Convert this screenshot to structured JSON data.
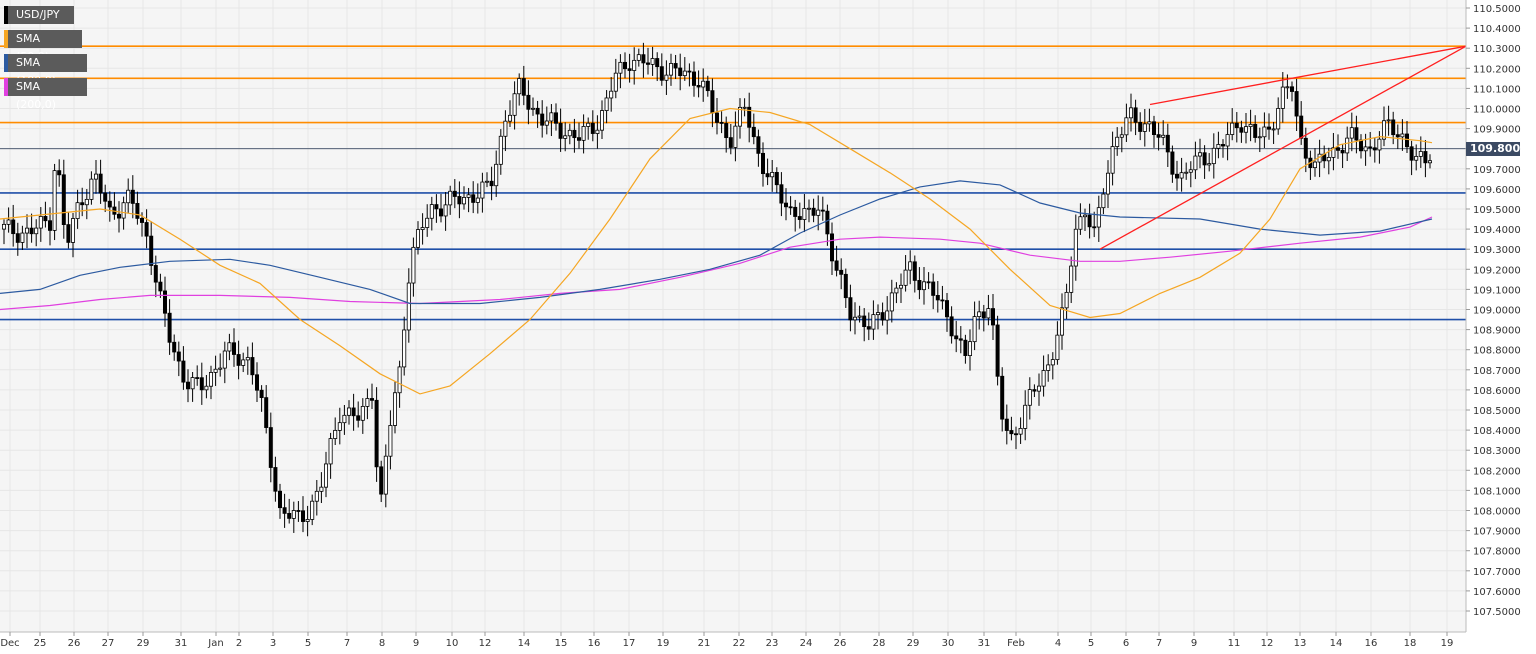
{
  "chart_data": {
    "type": "candlestick",
    "symbol": "USD/JPY",
    "legend": [
      {
        "label": "USD/JPY",
        "color": "#000000"
      },
      {
        "label": "SMA (50,0)",
        "color": "#f5a623"
      },
      {
        "label": "SMA (100,0)",
        "color": "#2c5aa0"
      },
      {
        "label": "SMA (200,0)",
        "color": "#e040e0"
      }
    ],
    "current_price": "109.8000",
    "ylim": [
      107.4,
      110.6
    ],
    "y_ticks": [
      "110.5000",
      "110.4000",
      "110.3000",
      "110.2000",
      "110.1000",
      "110.0000",
      "109.9000",
      "109.8000",
      "109.7000",
      "109.6000",
      "109.5000",
      "109.4000",
      "109.3000",
      "109.2000",
      "109.1000",
      "109.0000",
      "108.9000",
      "108.8000",
      "108.7000",
      "108.6000",
      "108.5000",
      "108.4000",
      "108.3000",
      "108.2000",
      "108.1000",
      "108.0000",
      "107.9000",
      "107.8000",
      "107.7000",
      "107.6000",
      "107.5000"
    ],
    "x_ticks": [
      "Dec",
      "25",
      "26",
      "27",
      "29",
      "31",
      "Jan",
      "2",
      "3",
      "5",
      "7",
      "8",
      "9",
      "10",
      "12",
      "14",
      "15",
      "16",
      "17",
      "19",
      "21",
      "22",
      "23",
      "24",
      "26",
      "28",
      "29",
      "30",
      "31",
      "Feb",
      "4",
      "5",
      "6",
      "7",
      "9",
      "11",
      "12",
      "13",
      "14",
      "16",
      "18",
      "19"
    ],
    "horizontal_levels": [
      {
        "value": 110.31,
        "color": "#ff8c00"
      },
      {
        "value": 110.15,
        "color": "#ff8c00"
      },
      {
        "value": 109.93,
        "color": "#ff8c00"
      },
      {
        "value": 109.58,
        "color": "#1f4fa8"
      },
      {
        "value": 109.3,
        "color": "#1f4fa8"
      },
      {
        "value": 108.95,
        "color": "#1f4fa8"
      }
    ],
    "trendlines": [
      {
        "from": [
          1150,
          110.02
        ],
        "to": [
          1466,
          110.31
        ],
        "color": "#ff2020"
      },
      {
        "from": [
          1100,
          109.3
        ],
        "to": [
          1466,
          110.31
        ],
        "color": "#ff2020"
      }
    ],
    "sma_50": [
      [
        0,
        109.45
      ],
      [
        60,
        109.48
      ],
      [
        100,
        109.5
      ],
      [
        140,
        109.47
      ],
      [
        180,
        109.35
      ],
      [
        220,
        109.22
      ],
      [
        260,
        109.13
      ],
      [
        300,
        108.95
      ],
      [
        340,
        108.82
      ],
      [
        380,
        108.68
      ],
      [
        420,
        108.58
      ],
      [
        450,
        108.62
      ],
      [
        490,
        108.78
      ],
      [
        530,
        108.95
      ],
      [
        570,
        109.18
      ],
      [
        610,
        109.45
      ],
      [
        650,
        109.75
      ],
      [
        690,
        109.95
      ],
      [
        730,
        110.0
      ],
      [
        770,
        109.98
      ],
      [
        810,
        109.92
      ],
      [
        850,
        109.8
      ],
      [
        890,
        109.68
      ],
      [
        930,
        109.55
      ],
      [
        970,
        109.4
      ],
      [
        1010,
        109.2
      ],
      [
        1050,
        109.02
      ],
      [
        1090,
        108.96
      ],
      [
        1120,
        108.98
      ],
      [
        1160,
        109.08
      ],
      [
        1200,
        109.16
      ],
      [
        1240,
        109.28
      ],
      [
        1270,
        109.45
      ],
      [
        1300,
        109.7
      ],
      [
        1340,
        109.82
      ],
      [
        1380,
        109.86
      ],
      [
        1420,
        109.84
      ],
      [
        1432,
        109.83
      ]
    ],
    "sma_100": [
      [
        0,
        109.08
      ],
      [
        40,
        109.1
      ],
      [
        80,
        109.17
      ],
      [
        120,
        109.21
      ],
      [
        170,
        109.24
      ],
      [
        230,
        109.25
      ],
      [
        270,
        109.22
      ],
      [
        320,
        109.16
      ],
      [
        370,
        109.1
      ],
      [
        410,
        109.03
      ],
      [
        480,
        109.03
      ],
      [
        540,
        109.06
      ],
      [
        600,
        109.1
      ],
      [
        660,
        109.15
      ],
      [
        710,
        109.2
      ],
      [
        760,
        109.27
      ],
      [
        800,
        109.38
      ],
      [
        840,
        109.47
      ],
      [
        880,
        109.55
      ],
      [
        920,
        109.61
      ],
      [
        960,
        109.64
      ],
      [
        1000,
        109.62
      ],
      [
        1040,
        109.53
      ],
      [
        1080,
        109.48
      ],
      [
        1120,
        109.46
      ],
      [
        1200,
        109.45
      ],
      [
        1260,
        109.4
      ],
      [
        1320,
        109.37
      ],
      [
        1380,
        109.39
      ],
      [
        1432,
        109.45
      ]
    ],
    "sma_200": [
      [
        0,
        109.0
      ],
      [
        50,
        109.02
      ],
      [
        100,
        109.05
      ],
      [
        150,
        109.07
      ],
      [
        220,
        109.07
      ],
      [
        290,
        109.06
      ],
      [
        350,
        109.04
      ],
      [
        420,
        109.03
      ],
      [
        500,
        109.05
      ],
      [
        560,
        109.08
      ],
      [
        620,
        109.1
      ],
      [
        680,
        109.16
      ],
      [
        740,
        109.23
      ],
      [
        790,
        109.31
      ],
      [
        840,
        109.35
      ],
      [
        880,
        109.36
      ],
      [
        940,
        109.35
      ],
      [
        980,
        109.33
      ],
      [
        1030,
        109.27
      ],
      [
        1080,
        109.24
      ],
      [
        1120,
        109.24
      ],
      [
        1170,
        109.26
      ],
      [
        1230,
        109.29
      ],
      [
        1300,
        109.33
      ],
      [
        1360,
        109.36
      ],
      [
        1410,
        109.41
      ],
      [
        1432,
        109.46
      ]
    ]
  }
}
